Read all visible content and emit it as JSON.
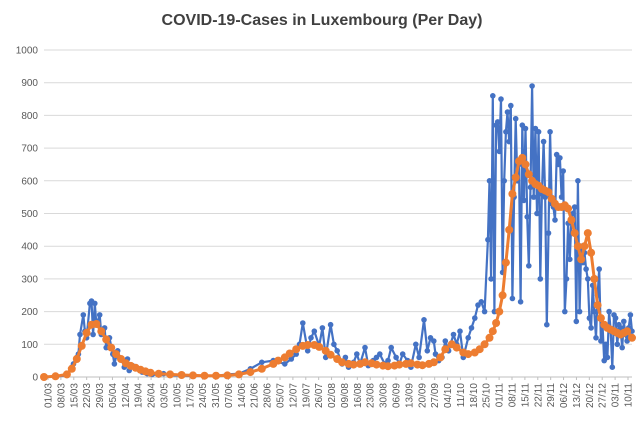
{
  "chart_data": {
    "type": "line",
    "title": "COVID-19-Cases in Luxembourg (Per Day)",
    "xlabel": "",
    "ylabel": "",
    "ylim": [
      0,
      1000
    ],
    "yticks": [
      0,
      100,
      200,
      300,
      400,
      500,
      600,
      700,
      800,
      900,
      1000
    ],
    "grid": true,
    "legend": "none",
    "colors": {
      "daily": "#4472C4",
      "average": "#ED7D31",
      "grid": "#D9D9D9",
      "axis": "#BFBFBF"
    },
    "x_tick_labels": [
      "01/03",
      "08/03",
      "15/03",
      "22/03",
      "29/03",
      "05/04",
      "12/04",
      "19/04",
      "26/04",
      "03/05",
      "10/05",
      "17/05",
      "24/05",
      "31/05",
      "07/06",
      "14/06",
      "21/06",
      "28/06",
      "05/07",
      "12/07",
      "19/07",
      "26/07",
      "02/08",
      "09/08",
      "16/08",
      "23/08",
      "30/08",
      "06/09",
      "13/09",
      "20/09",
      "27/09",
      "04/10",
      "11/10",
      "18/10",
      "25/10",
      "01/11",
      "08/11",
      "15/11",
      "22/11",
      "29/11",
      "06/12",
      "13/12",
      "20/12",
      "27/12",
      "03/11",
      "10/11"
    ],
    "series": [
      {
        "key": "daily",
        "x": [
          0,
          7,
          14,
          17,
          18,
          20,
          21,
          22,
          24,
          25,
          26,
          28,
          29,
          30,
          31,
          32,
          34,
          35,
          37,
          38,
          40,
          42,
          43,
          45,
          46,
          48,
          49,
          51,
          52,
          54,
          57,
          60,
          63,
          66,
          70,
          73,
          77,
          84,
          91,
          98,
          105,
          112,
          119,
          126,
          133,
          140,
          147,
          151,
          154,
          156,
          158,
          161,
          163,
          165,
          168,
          170,
          172,
          175,
          177,
          179,
          182,
          184,
          186,
          189,
          191,
          193,
          196,
          198,
          201,
          203,
          205,
          208,
          210,
          212,
          215,
          217,
          219,
          222,
          224,
          227,
          229,
          232,
          234,
          236,
          238,
          239,
          241,
          243,
          245,
          247,
          250,
          252,
          254,
          256,
          259,
          261,
          263,
          265,
          267,
          269,
          271,
          272,
          273,
          274,
          275,
          276,
          277,
          278,
          279,
          280,
          281,
          282,
          283,
          284,
          285,
          286,
          287,
          288,
          289,
          290,
          291,
          292,
          293,
          294,
          295,
          296,
          297,
          298,
          299,
          300,
          301,
          302,
          303,
          304,
          305,
          306,
          307,
          308,
          309,
          310,
          311,
          312,
          313,
          314,
          315,
          316,
          317,
          318,
          319,
          320,
          321,
          322,
          323,
          324,
          325,
          326,
          327,
          328,
          329,
          330,
          331,
          332,
          333,
          334,
          335,
          336,
          337,
          338,
          339,
          340,
          341,
          342,
          343,
          344,
          345,
          346,
          347,
          348,
          349,
          350,
          351,
          352,
          353,
          354,
          355,
          356,
          357,
          358,
          359
        ],
        "values": [
          0,
          1,
          5,
          30,
          40,
          60,
          70,
          130,
          190,
          140,
          120,
          225,
          232,
          130,
          225,
          160,
          190,
          130,
          150,
          90,
          120,
          70,
          40,
          80,
          60,
          50,
          30,
          55,
          20,
          35,
          25,
          15,
          10,
          8,
          6,
          10,
          5,
          4,
          3,
          5,
          3,
          8,
          10,
          25,
          45,
          50,
          40,
          55,
          70,
          100,
          165,
          80,
          120,
          140,
          95,
          150,
          60,
          160,
          100,
          80,
          40,
          60,
          30,
          45,
          70,
          40,
          90,
          35,
          50,
          60,
          70,
          40,
          50,
          90,
          60,
          40,
          70,
          50,
          30,
          100,
          60,
          175,
          80,
          120,
          110,
          70,
          50,
          60,
          110,
          80,
          130,
          100,
          140,
          60,
          120,
          150,
          180,
          220,
          230,
          200,
          420,
          600,
          300,
          860,
          200,
          770,
          780,
          690,
          850,
          320,
          600,
          750,
          810,
          720,
          830,
          240,
          550,
          790,
          600,
          650,
          230,
          770,
          540,
          760,
          490,
          340,
          580,
          890,
          550,
          760,
          500,
          750,
          300,
          560,
          720,
          550,
          160,
          440,
          750,
          530,
          520,
          480,
          680,
          650,
          670,
          550,
          630,
          200,
          300,
          470,
          360,
          480,
          500,
          520,
          170,
          600,
          200,
          400,
          350,
          380,
          330,
          300,
          180,
          150,
          280,
          200,
          120,
          250,
          330,
          110,
          160,
          50,
          100,
          60,
          200,
          140,
          30,
          190,
          180,
          100,
          160,
          150,
          90,
          170,
          130,
          110,
          150,
          190,
          140
        ]
      },
      {
        "key": "average",
        "x": [
          0,
          7,
          14,
          17,
          20,
          23,
          26,
          29,
          32,
          35,
          38,
          41,
          44,
          47,
          50,
          53,
          56,
          59,
          62,
          65,
          70,
          77,
          84,
          91,
          98,
          105,
          112,
          119,
          126,
          133,
          140,
          143,
          147,
          150,
          154,
          158,
          161,
          165,
          168,
          172,
          175,
          179,
          182,
          186,
          189,
          193,
          196,
          200,
          203,
          207,
          210,
          214,
          217,
          221,
          224,
          228,
          231,
          235,
          238,
          242,
          245,
          249,
          252,
          256,
          259,
          263,
          266,
          269,
          272,
          274,
          276,
          278,
          280,
          282,
          284,
          286,
          288,
          290,
          292,
          294,
          296,
          298,
          300,
          302,
          304,
          306,
          308,
          310,
          312,
          314,
          316,
          318,
          320,
          322,
          324,
          326,
          328,
          330,
          332,
          334,
          336,
          338,
          340,
          342,
          344,
          346,
          348,
          350,
          352,
          354,
          356,
          359
        ],
        "values": [
          0,
          2,
          8,
          25,
          55,
          95,
          135,
          160,
          162,
          140,
          115,
          90,
          70,
          55,
          42,
          34,
          28,
          22,
          17,
          13,
          10,
          8,
          6,
          5,
          4,
          4,
          5,
          8,
          15,
          25,
          40,
          50,
          60,
          72,
          85,
          95,
          98,
          98,
          92,
          80,
          68,
          55,
          45,
          40,
          38,
          40,
          45,
          42,
          38,
          35,
          33,
          35,
          38,
          40,
          42,
          38,
          36,
          40,
          45,
          60,
          85,
          100,
          90,
          75,
          70,
          75,
          85,
          100,
          120,
          140,
          165,
          200,
          250,
          350,
          450,
          560,
          610,
          660,
          670,
          650,
          620,
          600,
          590,
          585,
          575,
          570,
          565,
          545,
          530,
          520,
          520,
          525,
          515,
          480,
          440,
          400,
          360,
          400,
          440,
          380,
          300,
          220,
          180,
          160,
          150,
          145,
          140,
          135,
          130,
          135,
          140,
          120
        ]
      }
    ]
  }
}
